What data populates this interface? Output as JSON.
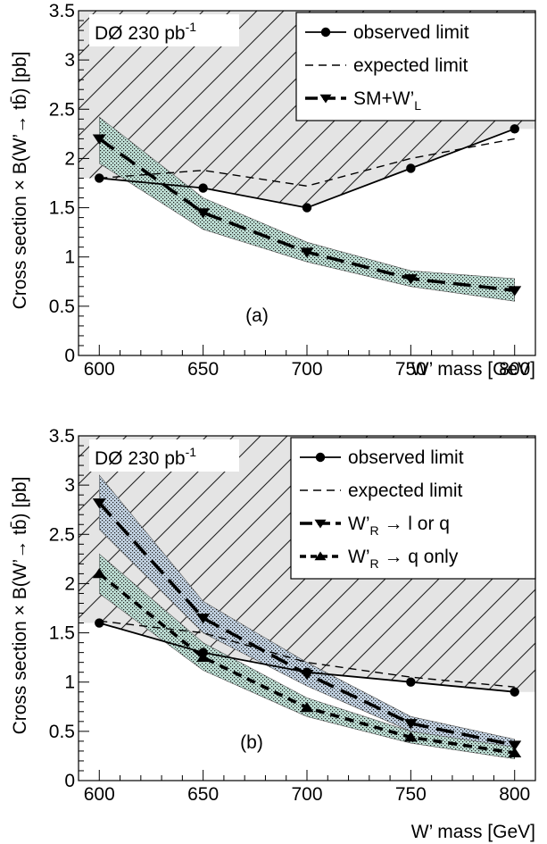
{
  "colors": {
    "band_green": "#bfe0d6",
    "band_blue": "#c4d4e4",
    "excluded_fill": "#e4e4e4",
    "line": "#000000"
  },
  "chart_data": [
    {
      "type": "line",
      "panel_label": "(a)",
      "experiment": "DØ 230 pb",
      "experiment_sup": "-1",
      "ylabel": "Cross section × B(W’→ tb̄) [pb]",
      "xlabel": "W’ mass [GeV]",
      "xlim": [
        590,
        810
      ],
      "ylim": [
        0,
        3.5
      ],
      "x_ticks": [
        "600",
        "650",
        "700",
        "750",
        "800"
      ],
      "y_ticks": [
        "0",
        "0.5",
        "1",
        "1.5",
        "2",
        "2.5",
        "3",
        "3.5"
      ],
      "x": [
        600,
        650,
        700,
        750,
        800
      ],
      "legend": {
        "position": "top-right",
        "entries": [
          {
            "key": "observed",
            "label": "observed limit",
            "sub": ""
          },
          {
            "key": "expected",
            "label": "expected limit",
            "sub": ""
          },
          {
            "key": "theory1",
            "label": "SM+W’",
            "sub": "L",
            "suffix": ""
          }
        ]
      },
      "observed": [
        1.8,
        1.7,
        1.5,
        1.9,
        2.3
      ],
      "expected": [
        1.8,
        1.88,
        1.72,
        2.0,
        2.2
      ],
      "theory1": {
        "values": [
          2.2,
          1.45,
          1.05,
          0.78,
          0.66
        ],
        "upper": [
          2.42,
          1.6,
          1.15,
          0.86,
          0.78
        ],
        "lower": [
          1.95,
          1.28,
          0.95,
          0.7,
          0.55
        ],
        "band_color": "#bfe0d6",
        "marker": "triangle-down"
      }
    },
    {
      "type": "line",
      "panel_label": "(b)",
      "experiment": "DØ 230 pb",
      "experiment_sup": "-1",
      "ylabel": "Cross section × B(W’→ tb̄) [pb]",
      "xlabel": "W’ mass [GeV]",
      "xlim": [
        590,
        810
      ],
      "ylim": [
        0,
        3.5
      ],
      "x_ticks": [
        "600",
        "650",
        "700",
        "750",
        "800"
      ],
      "y_ticks": [
        "0",
        "0.5",
        "1",
        "1.5",
        "2",
        "2.5",
        "3",
        "3.5"
      ],
      "x": [
        600,
        650,
        700,
        750,
        800
      ],
      "legend": {
        "position": "top-right",
        "entries": [
          {
            "key": "observed",
            "label": "observed limit",
            "sub": ""
          },
          {
            "key": "expected",
            "label": "expected limit",
            "sub": ""
          },
          {
            "key": "theory1",
            "label": "W’",
            "sub": "R",
            "suffix": " → l or q"
          },
          {
            "key": "theory2",
            "label": "W’",
            "sub": "R",
            "suffix": " → q only"
          }
        ]
      },
      "observed": [
        1.6,
        1.3,
        1.1,
        1.0,
        0.9
      ],
      "expected": [
        1.62,
        1.5,
        1.2,
        1.05,
        0.95
      ],
      "theory1": {
        "values": [
          2.82,
          1.65,
          1.08,
          0.58,
          0.36
        ],
        "upper": [
          3.1,
          1.82,
          1.2,
          0.65,
          0.42
        ],
        "lower": [
          2.55,
          1.5,
          0.96,
          0.5,
          0.3
        ],
        "band_color": "#c4d4e4",
        "marker": "triangle-down"
      },
      "theory2": {
        "values": [
          2.1,
          1.25,
          0.74,
          0.44,
          0.28
        ],
        "upper": [
          2.3,
          1.4,
          0.84,
          0.5,
          0.34
        ],
        "lower": [
          1.9,
          1.12,
          0.65,
          0.38,
          0.22
        ],
        "band_color": "#bfe0d6",
        "marker": "triangle-up"
      }
    }
  ]
}
